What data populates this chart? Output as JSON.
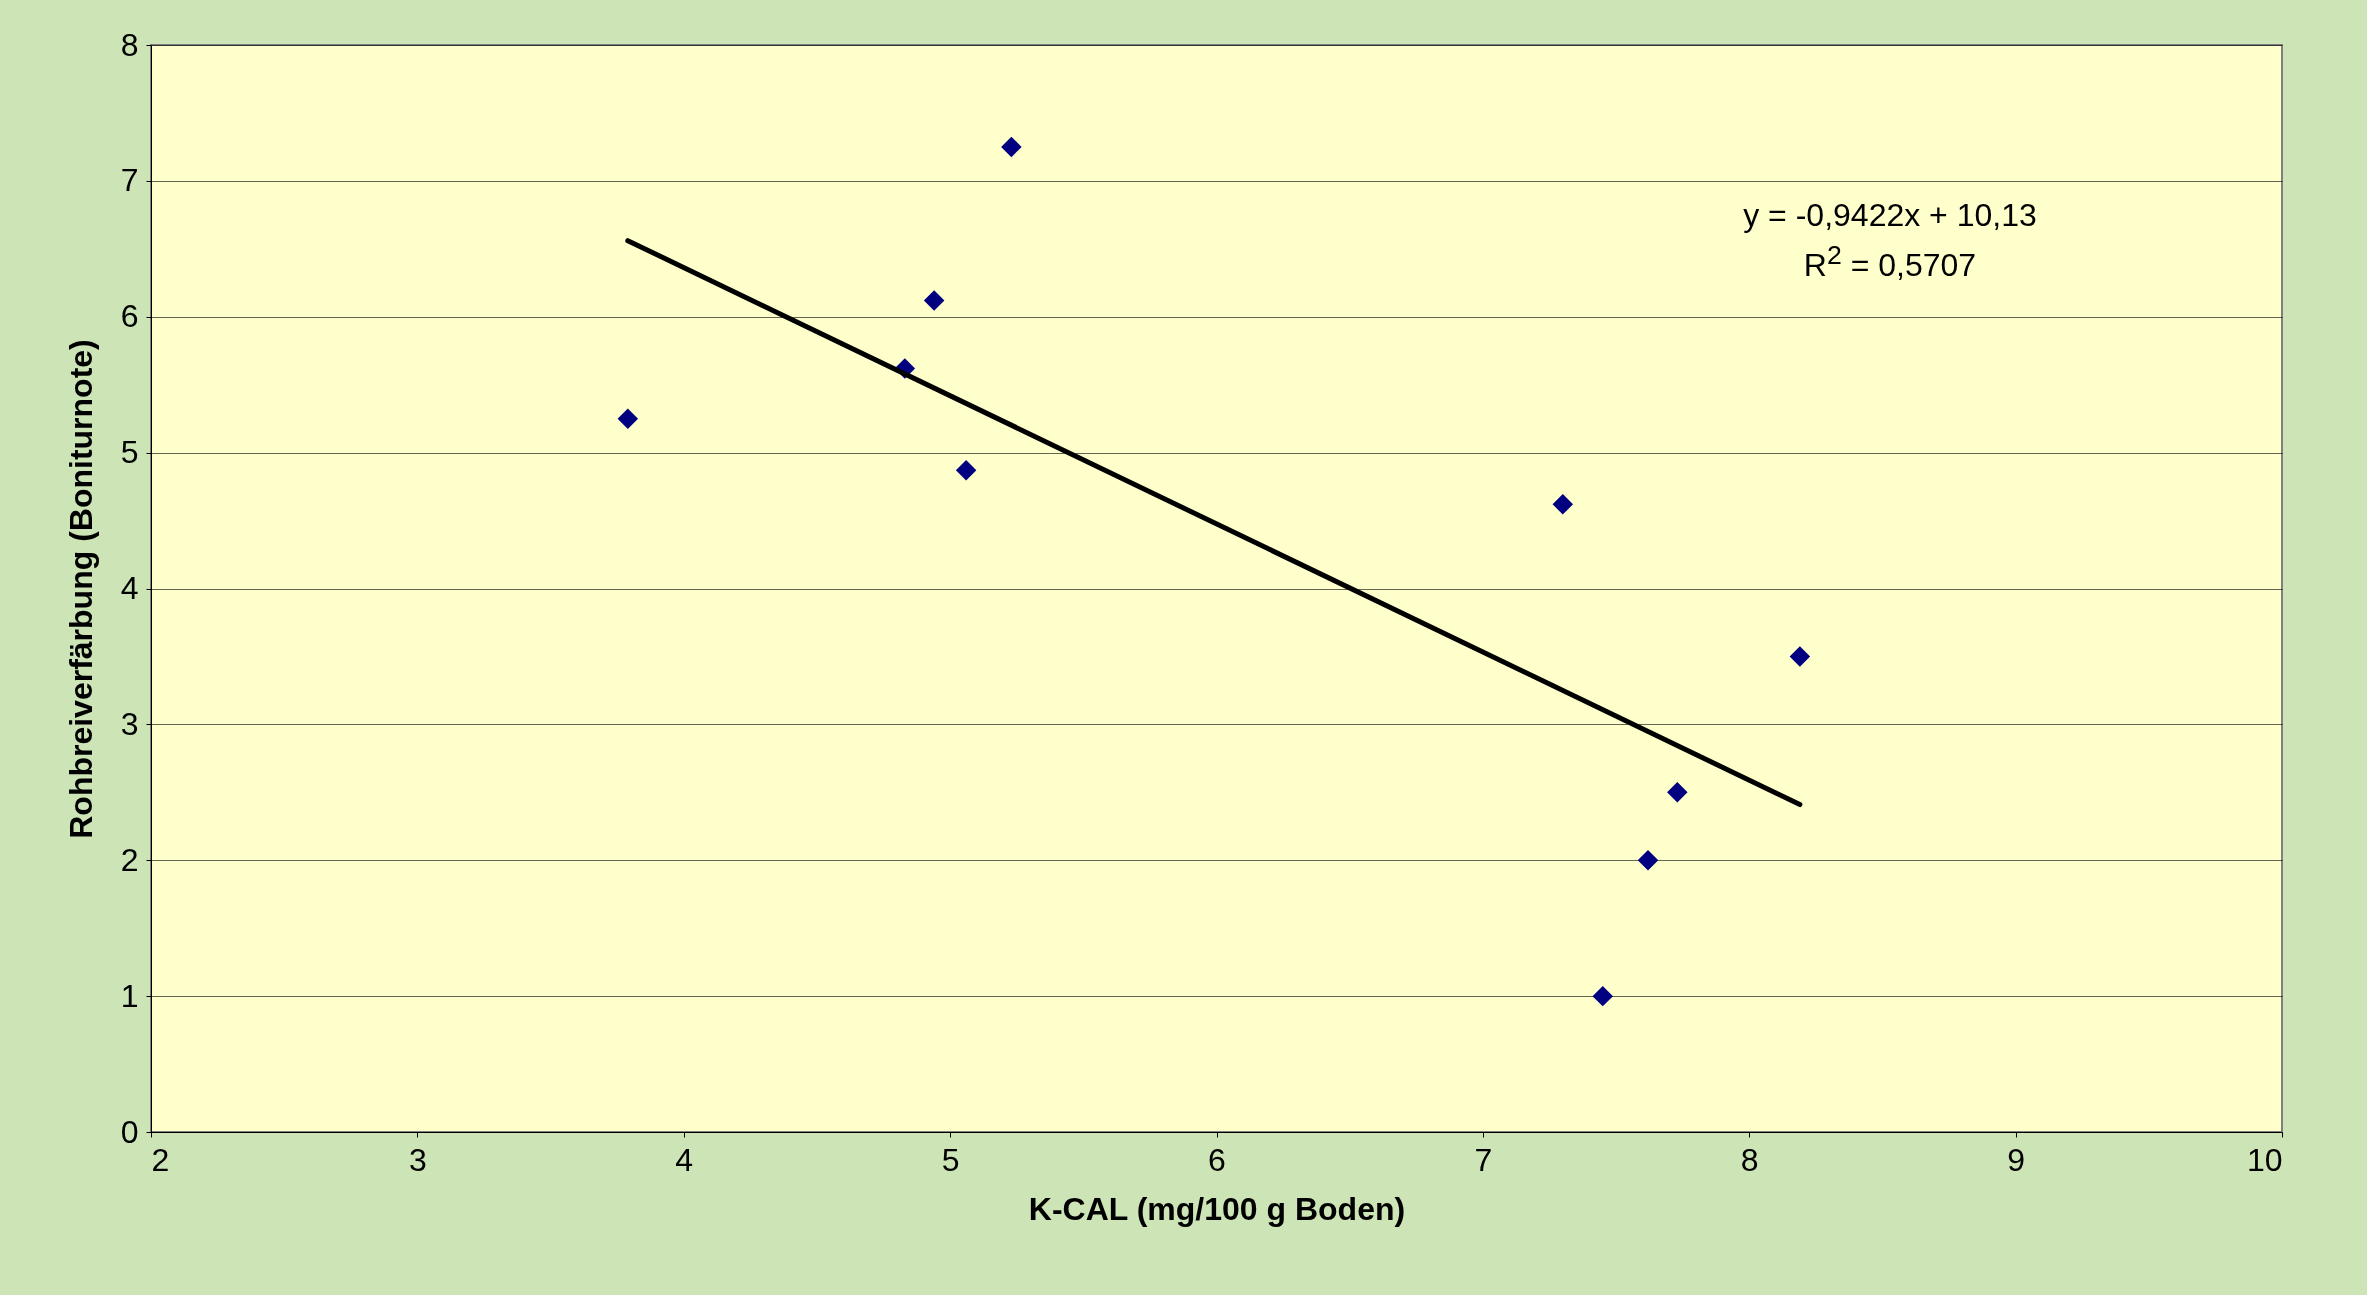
{
  "chart_data": {
    "type": "scatter",
    "xlabel": "K-CAL (mg/100 g Boden)",
    "ylabel": "Rohbreiverfärbung (Boniturnote)",
    "series": [
      {
        "color": "#000080",
        "marker": "diamond",
        "x": [
          3.79,
          4.83,
          4.94,
          5.06,
          5.23,
          7.3,
          7.45,
          7.62,
          7.73,
          8.19
        ],
        "values": [
          5.25,
          5.62,
          6.12,
          4.87,
          7.25,
          4.62,
          1.0,
          2.0,
          2.5,
          3.5
        ]
      },
      {
        "type": "line",
        "marker": "none",
        "color": "#000000",
        "x": [
          3.79,
          8.19
        ],
        "values": [
          6.56,
          2.41
        ]
      }
    ],
    "xlim": [
      2,
      10
    ],
    "xticks": [
      2,
      3,
      4,
      5,
      6,
      7,
      8,
      9,
      10
    ],
    "ylim": [
      0,
      8
    ],
    "yticks": [
      0,
      1,
      2,
      3,
      4,
      5,
      6,
      7,
      8
    ],
    "grid": "y",
    "line_style": "solid",
    "legend": false,
    "annotations": [
      "y = -0,9422x + 10,13",
      "R$^{2}$ = 0,5707"
    ]
  }
}
